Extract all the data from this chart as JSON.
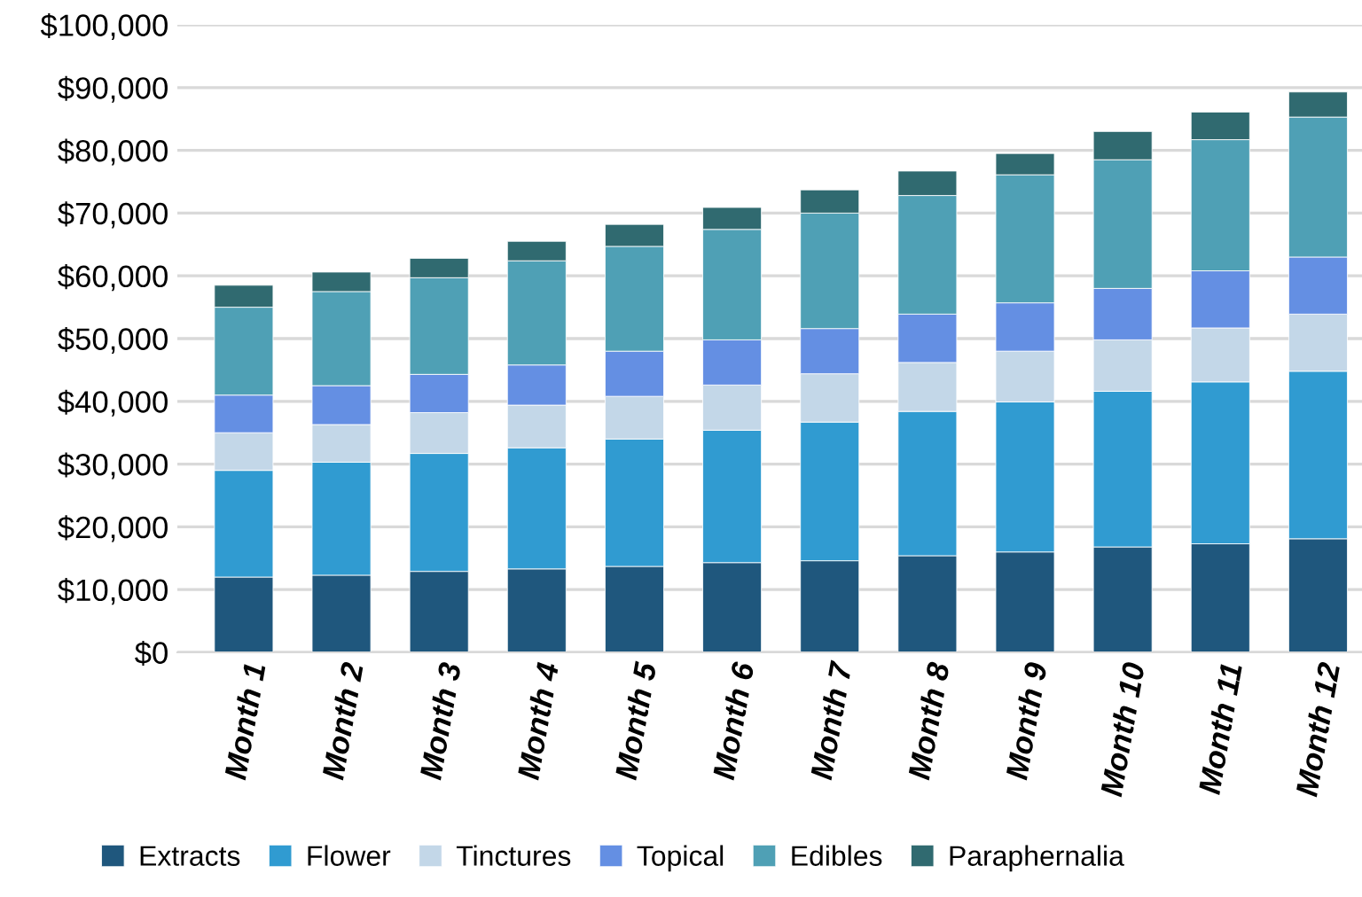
{
  "chart_data": {
    "type": "bar",
    "stacked": true,
    "categories": [
      "Month 1",
      "Month 2",
      "Month 3",
      "Month 4",
      "Month 5",
      "Month 6",
      "Month 7",
      "Month 8",
      "Month 9",
      "Month 10",
      "Month 11",
      "Month 12"
    ],
    "series": [
      {
        "name": "Extracts",
        "color": "#1f577d",
        "values": [
          12000,
          12300,
          12900,
          13300,
          13700,
          14300,
          14600,
          15400,
          16000,
          16800,
          17300,
          18100
        ]
      },
      {
        "name": "Flower",
        "color": "#309bd1",
        "values": [
          17000,
          18000,
          18800,
          19300,
          20300,
          21100,
          22100,
          23000,
          23900,
          24800,
          25800,
          26700
        ]
      },
      {
        "name": "Tinctures",
        "color": "#c3d7e8",
        "values": [
          6000,
          6000,
          6500,
          6800,
          6800,
          7200,
          7700,
          7800,
          8100,
          8200,
          8600,
          9100
        ]
      },
      {
        "name": "Topical",
        "color": "#648fe3",
        "values": [
          6000,
          6200,
          6100,
          6400,
          7200,
          7200,
          7200,
          7700,
          7700,
          8200,
          9100,
          9100
        ]
      },
      {
        "name": "Edibles",
        "color": "#4fa0b5",
        "values": [
          14000,
          15000,
          15400,
          16600,
          16700,
          17600,
          18400,
          18900,
          20400,
          20500,
          20900,
          22300
        ]
      },
      {
        "name": "Paraphernalia",
        "color": "#306a70",
        "values": [
          3500,
          3100,
          3100,
          3100,
          3500,
          3500,
          3700,
          3900,
          3400,
          4500,
          4400,
          4000
        ]
      }
    ],
    "ylim": [
      0,
      100000
    ],
    "yticks": [
      {
        "value": 0,
        "label": "$0"
      },
      {
        "value": 10000,
        "label": "$10,000"
      },
      {
        "value": 20000,
        "label": "$20,000"
      },
      {
        "value": 30000,
        "label": "$30,000"
      },
      {
        "value": 40000,
        "label": "$40,000"
      },
      {
        "value": 50000,
        "label": "$50,000"
      },
      {
        "value": 60000,
        "label": "$60,000"
      },
      {
        "value": 70000,
        "label": "$70,000"
      },
      {
        "value": 80000,
        "label": "$80,000"
      },
      {
        "value": 90000,
        "label": "$90,000"
      },
      {
        "value": 100000,
        "label": "$100,000"
      }
    ],
    "grid": "y",
    "legend": "bottom"
  }
}
